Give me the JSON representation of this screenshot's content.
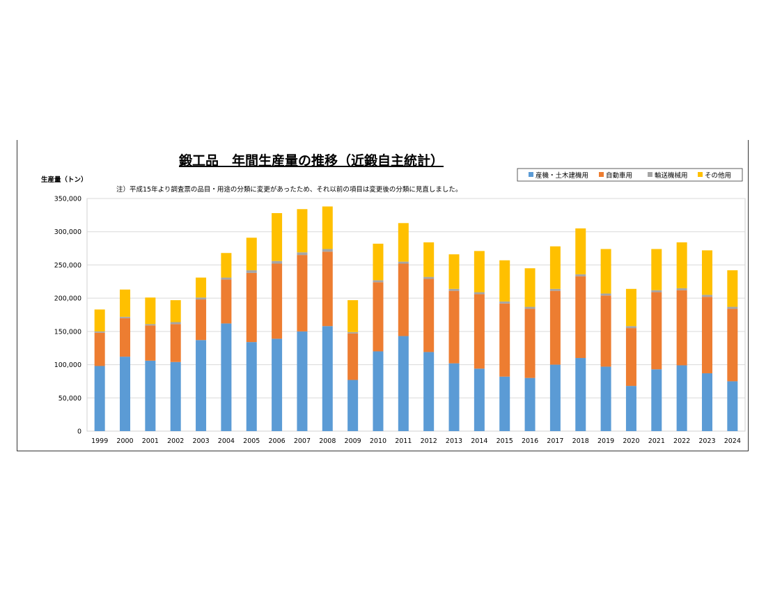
{
  "chart_data": {
    "type": "bar",
    "stacked": true,
    "title": "鍛工品　年間生産量の推移（近鍛自主統計）",
    "ylabel": "生産量（トン）",
    "note": "注）平成15年より調査票の品目・用途の分類に変更があったため、それ以前の項目は変更後の分類に見直しました。",
    "ylim": [
      0,
      350000
    ],
    "yticks": [
      "0",
      "50,000",
      "100,000",
      "150,000",
      "200,000",
      "250,000",
      "300,000",
      "350,000"
    ],
    "ytick_values": [
      0,
      50000,
      100000,
      150000,
      200000,
      250000,
      300000,
      350000
    ],
    "grid": true,
    "legend_position": "top-right",
    "categories": [
      "1999",
      "2000",
      "2001",
      "2002",
      "2003",
      "2004",
      "2005",
      "2006",
      "2007",
      "2008",
      "2009",
      "2010",
      "2011",
      "2012",
      "2013",
      "2014",
      "2015",
      "2016",
      "2017",
      "2018",
      "2019",
      "2020",
      "2021",
      "2022",
      "2023",
      "2024"
    ],
    "series": [
      {
        "name": "産機・土木建機用",
        "color": "#5B9BD5",
        "values": [
          98000,
          112000,
          106000,
          104000,
          137000,
          162000,
          134000,
          139000,
          150000,
          158000,
          77000,
          120000,
          143000,
          119000,
          102000,
          94000,
          82000,
          80000,
          100000,
          110000,
          97000,
          68000,
          93000,
          99000,
          87000,
          75000
        ]
      },
      {
        "name": "自動車用",
        "color": "#ED7D31",
        "values": [
          50000,
          58000,
          53000,
          57000,
          61000,
          66000,
          104000,
          113000,
          115000,
          112000,
          70000,
          104000,
          109000,
          110000,
          109000,
          112000,
          110000,
          104000,
          111000,
          123000,
          107000,
          87000,
          116000,
          113000,
          115000,
          109000
        ]
      },
      {
        "name": "輸送機械用",
        "color": "#A5A5A5",
        "values": [
          2000,
          2000,
          2000,
          3000,
          3000,
          3000,
          4000,
          4000,
          4000,
          4000,
          2000,
          3000,
          3000,
          3000,
          3000,
          3000,
          3000,
          3000,
          3000,
          3000,
          3000,
          3000,
          3000,
          3000,
          3000,
          3000
        ]
      },
      {
        "name": "その他用",
        "color": "#FFC000",
        "values": [
          33000,
          41000,
          40000,
          33000,
          30000,
          37000,
          49000,
          72000,
          65000,
          64000,
          48000,
          55000,
          58000,
          52000,
          52000,
          62000,
          62000,
          58000,
          64000,
          69000,
          67000,
          56000,
          62000,
          69000,
          67000,
          55000
        ]
      }
    ]
  }
}
